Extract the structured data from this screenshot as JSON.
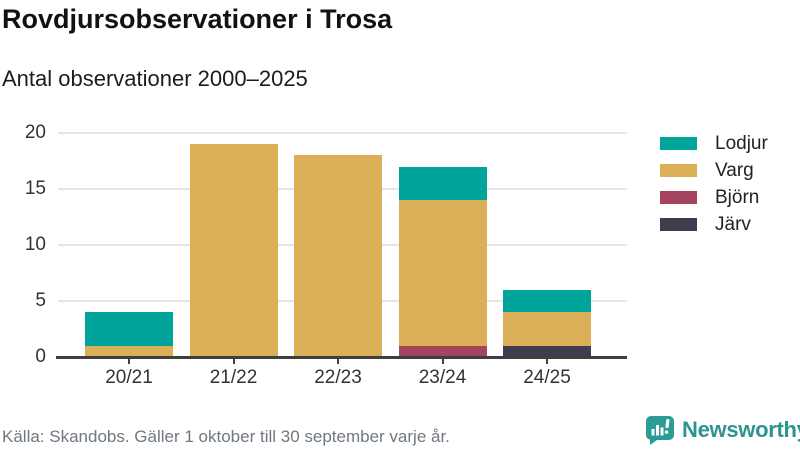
{
  "title": "Rovdjursobservationer i Trosa",
  "subtitle": "Antal observationer 2000–2025",
  "chart_data": {
    "type": "bar",
    "stacked": true,
    "title": "Rovdjursobservationer i Trosa",
    "subtitle": "Antal observationer 2000–2025",
    "categories": [
      "20/21",
      "21/22",
      "22/23",
      "23/24",
      "24/25"
    ],
    "series": [
      {
        "name": "Lodjur",
        "color": "#00a49a",
        "values": [
          3,
          0,
          0,
          3,
          2
        ]
      },
      {
        "name": "Varg",
        "color": "#dbae58",
        "values": [
          1,
          19,
          18,
          13,
          3
        ]
      },
      {
        "name": "Björn",
        "color": "#a5445f",
        "values": [
          0,
          0,
          0,
          1,
          0
        ]
      },
      {
        "name": "Järv",
        "color": "#3f3c4d",
        "values": [
          0,
          0,
          0,
          0,
          1
        ]
      }
    ],
    "stack_order_bottom_to_top": [
      "Järv",
      "Björn",
      "Varg",
      "Lodjur"
    ],
    "totals": [
      4,
      19,
      18,
      17,
      6
    ],
    "yticks": [
      0,
      5,
      10,
      15,
      20
    ],
    "ylim": [
      0,
      20
    ],
    "grid": "horizontal",
    "legend_position": "right"
  },
  "footer": {
    "source": "Källa: Skandobs. Gäller 1 oktober till 30 september varje år."
  },
  "brand": {
    "name": "Newsworthy",
    "color": "#2e9490",
    "icon": "bar-chart-speech-bubble"
  }
}
